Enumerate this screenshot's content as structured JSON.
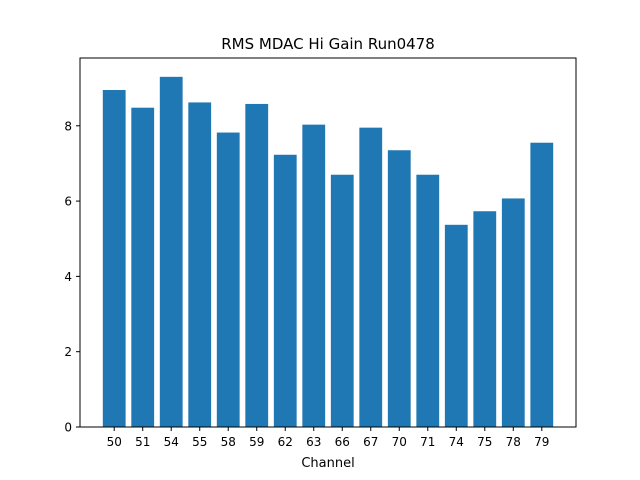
{
  "chart_data": {
    "type": "bar",
    "title": "RMS MDAC Hi Gain Run0478",
    "xlabel": "Channel",
    "ylabel": "",
    "categories": [
      "50",
      "51",
      "54",
      "55",
      "58",
      "59",
      "62",
      "63",
      "66",
      "67",
      "70",
      "71",
      "74",
      "75",
      "78",
      "79"
    ],
    "values": [
      8.95,
      8.48,
      9.3,
      8.62,
      7.82,
      8.58,
      7.23,
      8.03,
      6.7,
      7.95,
      7.35,
      6.7,
      5.37,
      5.73,
      6.07,
      7.55
    ],
    "ylim": [
      0,
      9.8
    ],
    "yticks": [
      0,
      2,
      4,
      6,
      8
    ],
    "grid": false,
    "bar_color": "#1f77b4"
  }
}
